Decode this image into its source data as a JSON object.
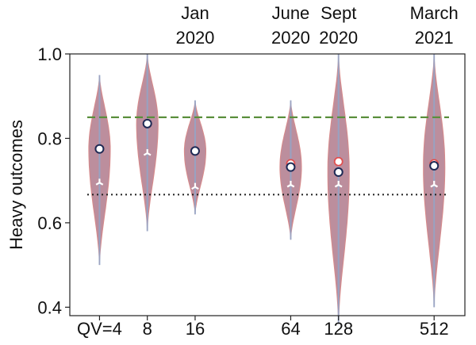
{
  "chart_data": {
    "type": "violin",
    "ylabel": "Heavy outcomes",
    "ylim": [
      0.38,
      1.0
    ],
    "yticks": [
      "0.4",
      "0.6",
      "0.8",
      "1.0"
    ],
    "ytick_values": [
      0.4,
      0.6,
      0.8,
      1.0
    ],
    "x_scale": "log2",
    "xlim": [
      2.6,
      800
    ],
    "x": [
      4,
      8,
      16,
      64,
      128,
      512
    ],
    "xtick_labels": [
      "QV=4",
      "8",
      "16",
      "64",
      "128",
      "512"
    ],
    "date_labels": [
      {
        "x": 16,
        "line1": "Jan",
        "line2": "2020"
      },
      {
        "x": 64,
        "line1": "June",
        "line2": "2020"
      },
      {
        "x": 128,
        "line1": "Sept",
        "line2": "2020"
      },
      {
        "x": 512,
        "line1": "March",
        "line2": "2021"
      }
    ],
    "reference_lines": [
      {
        "y": 0.85,
        "style": "dashed",
        "color": "#5a8f3c"
      },
      {
        "y": 0.6667,
        "style": "dotted",
        "color": "#222222"
      }
    ],
    "series": [
      {
        "color": "#b07a8c",
        "violins": [
          {
            "x": 4,
            "min": 0.5,
            "max": 0.95,
            "width": 0.45,
            "mean": 0.775,
            "median": 0.695
          },
          {
            "x": 8,
            "min": 0.58,
            "max": 1.0,
            "width": 0.45,
            "mean": 0.835,
            "median": 0.765
          },
          {
            "x": 16,
            "min": 0.62,
            "max": 0.89,
            "width": 0.45,
            "mean": 0.77,
            "median": 0.685
          },
          {
            "x": 64,
            "min": 0.56,
            "max": 0.89,
            "width": 0.45,
            "mean": 0.732,
            "median": 0.69
          },
          {
            "x": 128,
            "min": 0.36,
            "max": 1.0,
            "width": 0.45,
            "mean": 0.72,
            "median": 0.69
          },
          {
            "x": 512,
            "min": 0.4,
            "max": 1.0,
            "width": 0.45,
            "mean": 0.735,
            "median": 0.69
          }
        ],
        "secondary_means": [
          0.775,
          0.835,
          0.77,
          0.74,
          0.745,
          0.74
        ]
      }
    ]
  }
}
